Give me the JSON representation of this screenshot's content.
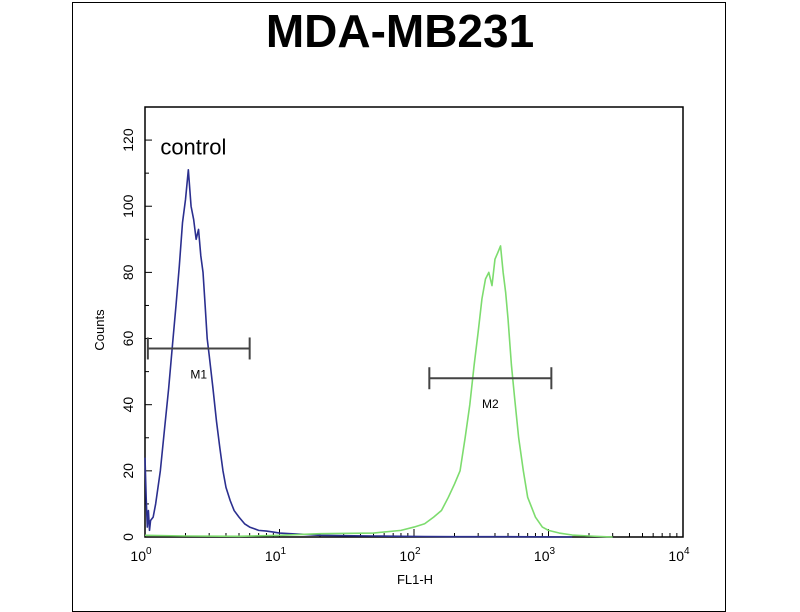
{
  "chart_data": {
    "type": "line",
    "title": "MDA-MB231",
    "xlabel": "FL1-H",
    "ylabel": "Counts",
    "xscale": "log",
    "xlim": [
      1,
      10000
    ],
    "ylim": [
      0,
      130
    ],
    "x_ticks": [
      {
        "base": "10",
        "exp": "0",
        "value": 1
      },
      {
        "base": "10",
        "exp": "1",
        "value": 10
      },
      {
        "base": "10",
        "exp": "2",
        "value": 100
      },
      {
        "base": "10",
        "exp": "3",
        "value": 1000
      },
      {
        "base": "10",
        "exp": "4",
        "value": 10000
      }
    ],
    "y_ticks": [
      {
        "label": "0",
        "value": 0
      },
      {
        "label": "20",
        "value": 20
      },
      {
        "label": "40",
        "value": 40
      },
      {
        "label": "60",
        "value": 60
      },
      {
        "label": "80",
        "value": 80
      },
      {
        "label": "100",
        "value": 100
      },
      {
        "label": "120",
        "value": 120
      }
    ],
    "annotations": [
      {
        "text": "control",
        "x": 1.3,
        "y": 118
      }
    ],
    "gates": [
      {
        "label": "M1",
        "x_start": 1.05,
        "x_end": 6,
        "y": 57
      },
      {
        "label": "M2",
        "x_start": 130,
        "x_end": 1050,
        "y": 48
      }
    ],
    "series": [
      {
        "color": "#2b2f8f",
        "x": [
          1.0,
          1.02,
          1.04,
          1.06,
          1.08,
          1.1,
          1.15,
          1.2,
          1.3,
          1.4,
          1.5,
          1.6,
          1.7,
          1.8,
          1.9,
          2.0,
          2.1,
          2.2,
          2.3,
          2.4,
          2.5,
          2.6,
          2.7,
          2.8,
          2.9,
          3.0,
          3.2,
          3.4,
          3.6,
          3.8,
          4.0,
          4.3,
          4.6,
          5.0,
          5.5,
          6.0,
          6.5,
          7,
          8,
          9,
          10,
          12,
          15,
          20,
          30,
          50,
          80,
          120,
          200,
          400,
          800,
          1500
        ],
        "y": [
          24,
          12,
          3,
          8,
          2,
          5,
          6,
          10,
          20,
          33,
          45,
          58,
          70,
          82,
          95,
          102,
          111,
          100,
          96,
          90,
          93,
          85,
          80,
          70,
          60,
          55,
          45,
          35,
          27,
          20,
          15,
          11,
          8,
          6,
          4,
          3,
          2.5,
          2,
          1.8,
          1.5,
          1.2,
          1.0,
          0.8,
          0.5,
          0.4,
          0.3,
          0.2,
          0.15,
          0.1,
          0.1,
          0.05,
          0
        ]
      },
      {
        "color": "#7ddc6e",
        "x": [
          1.0,
          2,
          5,
          10,
          20,
          50,
          80,
          100,
          120,
          140,
          160,
          180,
          200,
          220,
          240,
          260,
          280,
          300,
          320,
          340,
          360,
          380,
          400,
          420,
          440,
          460,
          480,
          500,
          530,
          560,
          600,
          650,
          700,
          800,
          900,
          1000,
          1200,
          1500,
          2000,
          3000
        ],
        "y": [
          0.5,
          0.3,
          0.2,
          0.5,
          1,
          1.2,
          2,
          3,
          4,
          6,
          8,
          12,
          16,
          20,
          30,
          40,
          52,
          62,
          72,
          78,
          80,
          76,
          84,
          86,
          88,
          80,
          74,
          66,
          52,
          42,
          30,
          20,
          12,
          6,
          3,
          2,
          1.2,
          0.6,
          0.3,
          0
        ]
      }
    ]
  }
}
